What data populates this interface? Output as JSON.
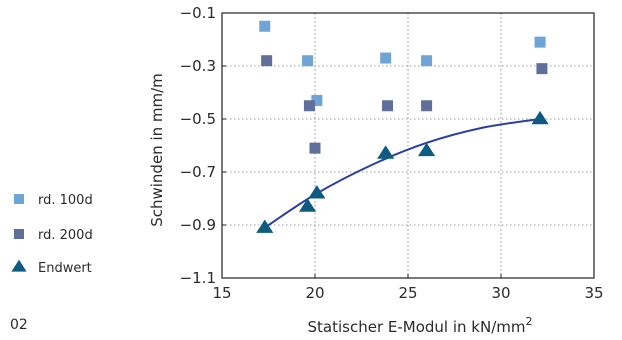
{
  "figure_number": "02",
  "chart_data": {
    "type": "scatter",
    "title": "",
    "xlabel": "Statischer E-Modul in kN/mm",
    "xlabel_superscript": "2",
    "ylabel": "Schwinden in mm/m",
    "xlim": [
      15,
      35
    ],
    "ylim": [
      -1.1,
      -0.1
    ],
    "xticks": [
      15,
      20,
      25,
      30,
      35
    ],
    "xtick_labels": [
      "15",
      "20",
      "25",
      "30",
      "35"
    ],
    "yticks": [
      -0.1,
      -0.3,
      -0.5,
      -0.7,
      -0.9,
      -1.1
    ],
    "ytick_labels": [
      "−0.1",
      "−0.3",
      "−0.5",
      "−0.7",
      "−0.9",
      "−1.1"
    ],
    "grid": "dotted",
    "legend_position": "left",
    "series": [
      {
        "name": "rd. 100d",
        "marker": "square",
        "color": "#6fa4d6",
        "points": [
          {
            "x": 17.3,
            "y": -0.15
          },
          {
            "x": 19.6,
            "y": -0.28
          },
          {
            "x": 20.1,
            "y": -0.43
          },
          {
            "x": 23.8,
            "y": -0.27
          },
          {
            "x": 26.0,
            "y": -0.28
          },
          {
            "x": 32.1,
            "y": -0.21
          }
        ]
      },
      {
        "name": "rd. 200d",
        "marker": "square",
        "color": "#5f6f99",
        "points": [
          {
            "x": 17.4,
            "y": -0.28
          },
          {
            "x": 19.7,
            "y": -0.45
          },
          {
            "x": 20.0,
            "y": -0.61
          },
          {
            "x": 23.9,
            "y": -0.45
          },
          {
            "x": 26.0,
            "y": -0.45
          },
          {
            "x": 32.2,
            "y": -0.31
          }
        ]
      },
      {
        "name": "Endwert",
        "marker": "triangle",
        "color": "#0f5a80",
        "points": [
          {
            "x": 17.3,
            "y": -0.91
          },
          {
            "x": 19.6,
            "y": -0.83
          },
          {
            "x": 20.1,
            "y": -0.78
          },
          {
            "x": 23.8,
            "y": -0.63
          },
          {
            "x": 26.0,
            "y": -0.62
          },
          {
            "x": 32.1,
            "y": -0.5
          }
        ]
      }
    ],
    "trendline": {
      "series": "Endwert",
      "color": "#2a3f9e",
      "x": [
        17.3,
        20,
        23,
        26,
        29,
        32.1
      ],
      "y": [
        -0.91,
        -0.785,
        -0.675,
        -0.59,
        -0.533,
        -0.5
      ]
    }
  }
}
